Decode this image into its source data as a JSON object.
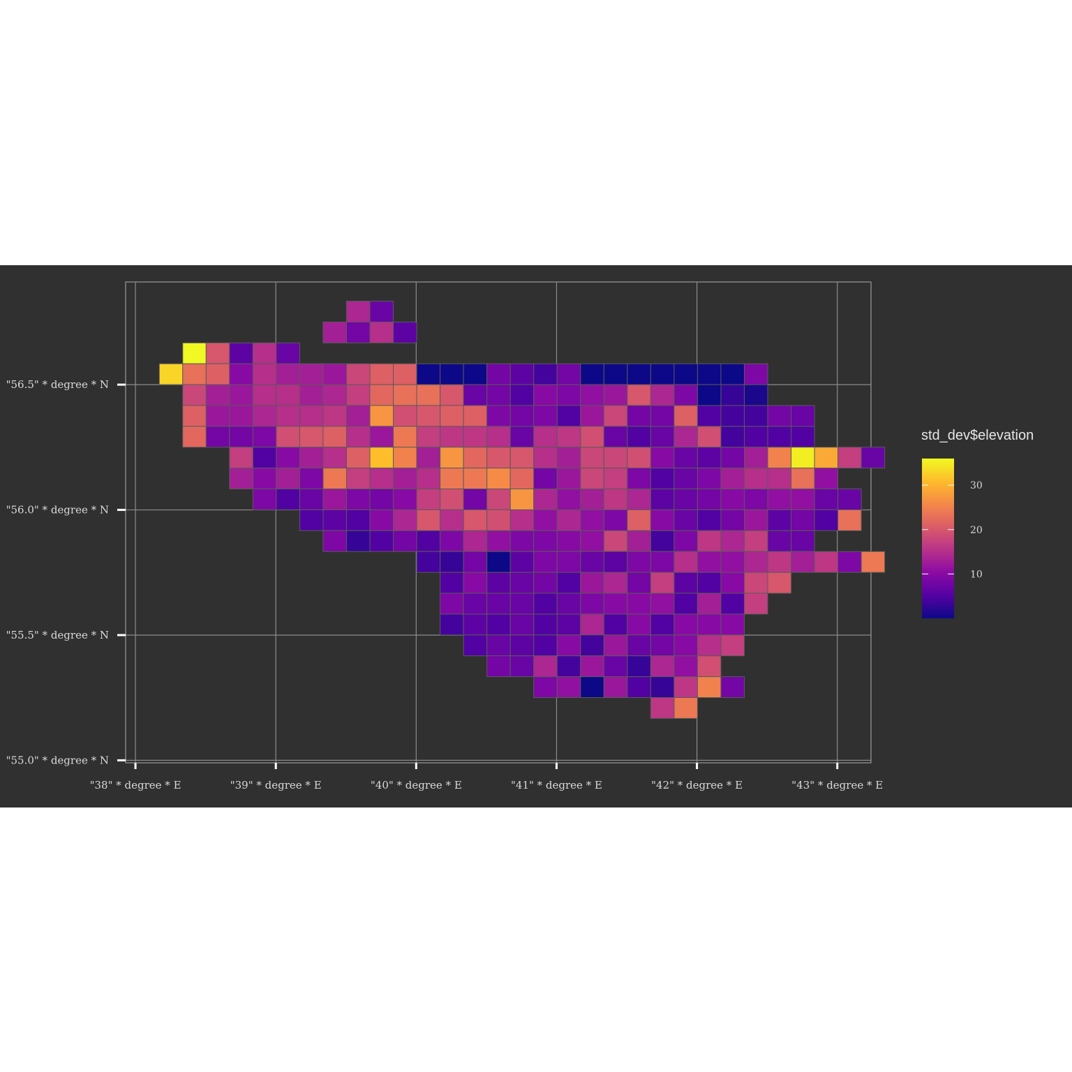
{
  "chart_data": {
    "type": "heatmap",
    "title": "",
    "xlabel": "",
    "ylabel": "",
    "x_ticks": [
      {
        "value": 38,
        "label": "\"38\" * degree * E"
      },
      {
        "value": 39,
        "label": "\"39\" * degree * E"
      },
      {
        "value": 40,
        "label": "\"40\" * degree * E"
      },
      {
        "value": 41,
        "label": "\"41\" * degree * E"
      },
      {
        "value": 42,
        "label": "\"42\" * degree * E"
      },
      {
        "value": 43,
        "label": "\"43\" * degree * E"
      }
    ],
    "y_ticks": [
      {
        "value": 56.5,
        "label": "\"56.5\" * degree * N"
      },
      {
        "value": 56.0,
        "label": "\"56.0\" * degree * N"
      },
      {
        "value": 55.5,
        "label": "\"55.5\" * degree * N"
      },
      {
        "value": 55.0,
        "label": "\"55.0\" * degree * N"
      }
    ],
    "xlim": [
      37.93,
      43.24
    ],
    "ylim": [
      54.99,
      56.91
    ],
    "grid": true,
    "legend": {
      "title": "std_dev$elevation",
      "placement": "right",
      "palette": "plasma",
      "range": [
        0,
        36
      ],
      "breaks": [
        10,
        20,
        30
      ]
    },
    "cell_lon_start": 38.17,
    "cell_lon_step": 0.1667,
    "cell_lat_top": 56.8333,
    "cell_lat_step": 0.0833,
    "row_offsets": [
      8,
      7,
      1,
      0,
      1,
      1,
      1,
      3,
      3,
      4,
      6,
      7,
      11,
      12,
      12,
      12,
      13,
      14,
      16,
      21
    ],
    "values": [
      [
        14,
        7
      ],
      [
        13,
        8,
        15,
        6
      ],
      [
        36,
        20,
        6,
        15,
        7
      ],
      [
        33,
        23,
        21,
        10,
        15,
        13,
        13,
        12,
        18,
        21,
        21,
        0,
        0,
        0,
        8,
        6,
        4,
        8,
        0,
        0,
        0,
        0,
        0,
        0,
        0,
        9
      ],
      [
        18,
        13,
        12,
        15,
        15,
        13,
        14,
        17,
        22,
        23,
        23,
        20,
        7,
        8,
        5,
        10,
        9,
        11,
        12,
        20,
        14,
        9,
        0,
        3,
        1
      ],
      [
        21,
        12,
        12,
        14,
        15,
        15,
        16,
        13,
        27,
        19,
        20,
        21,
        21,
        9,
        8,
        9,
        5,
        12,
        18,
        8,
        8,
        21,
        5,
        4,
        4,
        8,
        7
      ],
      [
        22,
        8,
        8,
        9,
        19,
        20,
        21,
        15,
        12,
        24,
        17,
        16,
        16,
        15,
        7,
        15,
        16,
        19,
        7,
        5,
        7,
        14,
        19,
        4,
        5,
        5,
        5
      ],
      [
        17,
        5,
        10,
        13,
        15,
        21,
        31,
        25,
        13,
        27,
        22,
        20,
        20,
        15,
        13,
        18,
        18,
        19,
        10,
        7,
        6,
        8,
        13,
        25,
        35,
        29,
        17,
        7
      ],
      [
        13,
        10,
        13,
        9,
        24,
        17,
        15,
        13,
        15,
        24,
        24,
        26,
        22,
        8,
        12,
        18,
        17,
        9,
        5,
        7,
        9,
        13,
        15,
        15,
        23,
        11
      ],
      [
        9,
        5,
        7,
        12,
        9,
        8,
        10,
        17,
        19,
        8,
        18,
        27,
        14,
        11,
        13,
        16,
        14,
        6,
        7,
        8,
        10,
        9,
        11,
        11,
        7,
        7
      ],
      [
        5,
        6,
        5,
        10,
        14,
        20,
        15,
        20,
        19,
        15,
        11,
        14,
        11,
        9,
        21,
        10,
        7,
        5,
        8,
        12,
        6,
        8,
        5,
        23
      ],
      [
        9,
        3,
        5,
        8,
        5,
        9,
        14,
        11,
        9,
        9,
        10,
        11,
        18,
        13,
        4,
        9,
        16,
        14,
        17,
        7,
        7
      ],
      [
        4,
        3,
        8,
        0,
        6,
        9,
        9,
        7,
        6,
        9,
        9,
        15,
        11,
        11,
        14,
        16,
        13,
        16,
        9,
        24
      ],
      [
        5,
        10,
        6,
        7,
        8,
        5,
        12,
        14,
        8,
        17,
        6,
        5,
        10,
        18,
        20
      ],
      [
        9,
        7,
        7,
        7,
        5,
        7,
        9,
        10,
        10,
        11,
        5,
        13,
        5,
        17
      ],
      [
        4,
        6,
        5,
        7,
        5,
        6,
        14,
        5,
        10,
        5,
        10,
        10,
        10
      ],
      [
        5,
        7,
        6,
        5,
        10,
        4,
        12,
        7,
        8,
        10,
        15,
        17
      ],
      [
        8,
        7,
        14,
        4,
        12,
        7,
        3,
        14,
        11,
        19
      ],
      [
        9,
        11,
        0,
        12,
        5,
        3,
        16,
        25,
        8
      ],
      [
        16,
        24
      ]
    ]
  }
}
